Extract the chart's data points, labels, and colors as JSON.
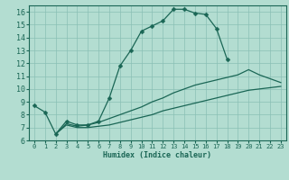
{
  "xlabel": "Humidex (Indice chaleur)",
  "bg_color": "#b3ddd1",
  "grid_color": "#8abfb5",
  "line_color": "#1a6655",
  "xlim": [
    -0.5,
    23.5
  ],
  "ylim": [
    6,
    16.5
  ],
  "xticks": [
    0,
    1,
    2,
    3,
    4,
    5,
    6,
    7,
    8,
    9,
    10,
    11,
    12,
    13,
    14,
    15,
    16,
    17,
    18,
    19,
    20,
    21,
    22,
    23
  ],
  "yticks": [
    6,
    7,
    8,
    9,
    10,
    11,
    12,
    13,
    14,
    15,
    16
  ],
  "line1_x": [
    0,
    1,
    2,
    3,
    4,
    5,
    6,
    7,
    8,
    9,
    10,
    11,
    12,
    13,
    14,
    15,
    16,
    17,
    18
  ],
  "line1_y": [
    8.7,
    8.2,
    6.5,
    7.5,
    7.2,
    7.2,
    7.5,
    9.3,
    11.8,
    13.0,
    14.5,
    14.9,
    15.3,
    16.2,
    16.2,
    15.9,
    15.8,
    14.7,
    12.3
  ],
  "line2_x": [
    2,
    3,
    4,
    5,
    6,
    7,
    8,
    9,
    10,
    11,
    12,
    13,
    14,
    15,
    16,
    17,
    18,
    19,
    20,
    21,
    22,
    23
  ],
  "line2_y": [
    6.5,
    7.3,
    7.1,
    7.2,
    7.4,
    7.7,
    8.0,
    8.3,
    8.6,
    9.0,
    9.3,
    9.7,
    10.0,
    10.3,
    10.5,
    10.7,
    10.9,
    11.1,
    11.5,
    11.1,
    10.8,
    10.5
  ],
  "line3_x": [
    2,
    3,
    4,
    5,
    6,
    7,
    8,
    9,
    10,
    11,
    12,
    13,
    14,
    15,
    16,
    17,
    18,
    19,
    20,
    21,
    22,
    23
  ],
  "line3_y": [
    6.5,
    7.2,
    7.0,
    7.0,
    7.1,
    7.2,
    7.4,
    7.6,
    7.8,
    8.0,
    8.3,
    8.5,
    8.7,
    8.9,
    9.1,
    9.3,
    9.5,
    9.7,
    9.9,
    10.0,
    10.1,
    10.2
  ]
}
